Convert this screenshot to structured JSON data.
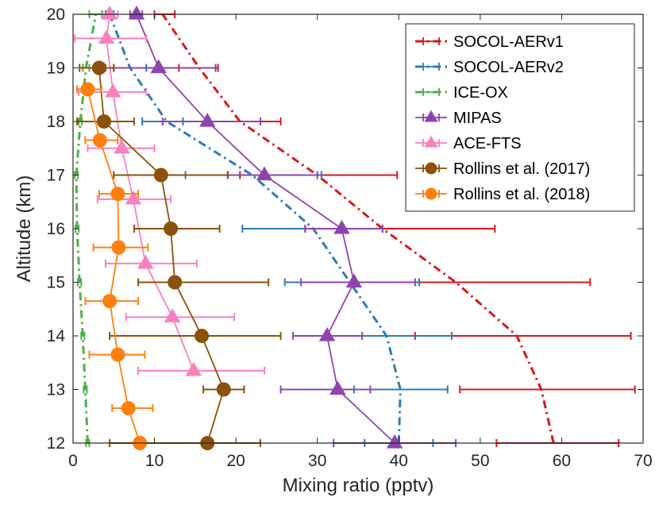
{
  "chart_data": {
    "type": "line",
    "xlabel": "Mixing ratio (pptv)",
    "ylabel": "Altitude (km)",
    "xlim": [
      0,
      70
    ],
    "ylim": [
      12,
      20
    ],
    "xticks": [
      0,
      10,
      20,
      30,
      40,
      50,
      60,
      70
    ],
    "yticks": [
      12,
      13,
      14,
      15,
      16,
      17,
      18,
      19,
      20
    ],
    "grid": false,
    "legend_position": "top-right",
    "series": [
      {
        "name": "SOCOL-AERv1",
        "color": "#d7191c",
        "style": "dashdot",
        "marker": "none",
        "points": [
          [
            59.0,
            12
          ],
          [
            57.5,
            13
          ],
          [
            54.5,
            14
          ],
          [
            47.0,
            15
          ],
          [
            38.0,
            16
          ],
          [
            30.0,
            17
          ],
          [
            20.5,
            18
          ],
          [
            15.5,
            19
          ],
          [
            11.0,
            20
          ]
        ],
        "errorbars": [
          {
            "y": 12,
            "lo": 52.0,
            "hi": 67.0
          },
          {
            "y": 13,
            "lo": 47.5,
            "hi": 69.0
          },
          {
            "y": 14,
            "lo": 42.0,
            "hi": 68.5
          },
          {
            "y": 15,
            "lo": 42.5,
            "hi": 63.5
          },
          {
            "y": 16,
            "lo": 28.5,
            "hi": 51.8
          },
          {
            "y": 17,
            "lo": 20.5,
            "hi": 39.8
          },
          {
            "y": 18,
            "lo": 13.5,
            "hi": 25.5
          },
          {
            "y": 19,
            "lo": 13.0,
            "hi": 17.8
          },
          {
            "y": 20,
            "lo": 10.0,
            "hi": 12.5
          }
        ]
      },
      {
        "name": "SOCOL-AERv2",
        "color": "#2c7bb6",
        "style": "dashdot",
        "marker": "none",
        "points": [
          [
            40.0,
            12
          ],
          [
            40.2,
            13
          ],
          [
            38.5,
            14
          ],
          [
            34.0,
            15
          ],
          [
            29.5,
            16
          ],
          [
            22.0,
            17
          ],
          [
            11.5,
            18
          ],
          [
            7.0,
            19
          ],
          [
            4.5,
            20
          ]
        ],
        "errorbars": [
          {
            "y": 12,
            "lo": 35.8,
            "hi": 44.2
          },
          {
            "y": 13,
            "lo": 34.5,
            "hi": 46.0
          },
          {
            "y": 14,
            "lo": 31.0,
            "hi": 46.5
          },
          {
            "y": 15,
            "lo": 26.0,
            "hi": 42.5
          },
          {
            "y": 16,
            "lo": 20.8,
            "hi": 38.0
          },
          {
            "y": 17,
            "lo": 13.8,
            "hi": 30.5
          },
          {
            "y": 18,
            "lo": 8.5,
            "hi": 13.5
          },
          {
            "y": 19,
            "lo": 5.0,
            "hi": 9.0
          },
          {
            "y": 20,
            "lo": 4.0,
            "hi": 5.0
          }
        ]
      },
      {
        "name": "ICE-OX",
        "color": "#4daf4a",
        "style": "dashdot",
        "marker": "none",
        "points": [
          [
            1.8,
            12
          ],
          [
            1.5,
            13
          ],
          [
            1.2,
            14
          ],
          [
            0.8,
            15
          ],
          [
            0.5,
            16
          ],
          [
            0.4,
            17
          ],
          [
            0.9,
            18
          ],
          [
            1.6,
            19
          ],
          [
            2.8,
            20
          ]
        ],
        "errorbars": [
          {
            "y": 12,
            "lo": 1.6,
            "hi": 2.0
          },
          {
            "y": 13,
            "lo": 1.3,
            "hi": 1.7
          },
          {
            "y": 14,
            "lo": 1.0,
            "hi": 1.4
          },
          {
            "y": 15,
            "lo": 0.6,
            "hi": 1.0
          },
          {
            "y": 16,
            "lo": 0.3,
            "hi": 0.7
          },
          {
            "y": 17,
            "lo": 0.2,
            "hi": 0.6
          },
          {
            "y": 18,
            "lo": 0.7,
            "hi": 1.1
          },
          {
            "y": 19,
            "lo": 1.2,
            "hi": 2.0
          },
          {
            "y": 20,
            "lo": 2.0,
            "hi": 3.6
          }
        ]
      },
      {
        "name": "MIPAS",
        "color": "#8e44ad",
        "style": "solid",
        "marker": "triangle",
        "points": [
          [
            39.5,
            12
          ],
          [
            32.5,
            13
          ],
          [
            31.2,
            14
          ],
          [
            34.5,
            15
          ],
          [
            33.0,
            16
          ],
          [
            23.5,
            17
          ],
          [
            16.5,
            18
          ],
          [
            10.5,
            19
          ],
          [
            7.8,
            20
          ]
        ],
        "errorbars": [
          {
            "y": 12,
            "lo": 32.0,
            "hi": 47.0
          },
          {
            "y": 13,
            "lo": 25.5,
            "hi": 36.5
          },
          {
            "y": 14,
            "lo": 27.0,
            "hi": 35.5
          },
          {
            "y": 15,
            "lo": 28.0,
            "hi": 42.0
          },
          {
            "y": 16,
            "lo": 28.5,
            "hi": 38.0
          },
          {
            "y": 17,
            "lo": 19.0,
            "hi": 30.0
          },
          {
            "y": 18,
            "lo": 11.0,
            "hi": 23.0
          },
          {
            "y": 19,
            "lo": 4.0,
            "hi": 17.5
          },
          {
            "y": 20,
            "lo": 7.0,
            "hi": 8.5
          }
        ]
      },
      {
        "name": "ACE-FTS",
        "color": "#f781bf",
        "style": "solid",
        "marker": "triangle",
        "points": [
          [
            14.8,
            13.35
          ],
          [
            12.2,
            14.35
          ],
          [
            8.9,
            15.35
          ],
          [
            7.4,
            16.55
          ],
          [
            6.0,
            17.5
          ],
          [
            4.9,
            18.55
          ],
          [
            4.1,
            19.55
          ],
          [
            4.5,
            20
          ]
        ],
        "errorbars": [
          {
            "y": 13.35,
            "lo": 8.0,
            "hi": 23.5
          },
          {
            "y": 14.35,
            "lo": 6.5,
            "hi": 19.8
          },
          {
            "y": 15.35,
            "lo": 4.0,
            "hi": 15.2
          },
          {
            "y": 16.55,
            "lo": 3.0,
            "hi": 12.0
          },
          {
            "y": 17.5,
            "lo": 1.8,
            "hi": 10.0
          },
          {
            "y": 18.55,
            "lo": 0.7,
            "hi": 9.0
          },
          {
            "y": 19.55,
            "lo": 0.2,
            "hi": 9.0
          },
          {
            "y": 20,
            "lo": 3.5,
            "hi": 5.5
          }
        ]
      },
      {
        "name": "Rollins et al. (2017)",
        "color": "#8c510a",
        "style": "solid",
        "marker": "circle",
        "points": [
          [
            16.5,
            12
          ],
          [
            18.5,
            13
          ],
          [
            15.8,
            14
          ],
          [
            12.5,
            15
          ],
          [
            12.0,
            16
          ],
          [
            10.8,
            17
          ],
          [
            3.8,
            18
          ],
          [
            3.2,
            19
          ]
        ],
        "errorbars": [
          {
            "y": 12,
            "lo": 4.5,
            "hi": 23.0
          },
          {
            "y": 13,
            "lo": 16.0,
            "hi": 21.0
          },
          {
            "y": 14,
            "lo": 4.5,
            "hi": 25.5
          },
          {
            "y": 15,
            "lo": 8.0,
            "hi": 24.0
          },
          {
            "y": 16,
            "lo": 7.5,
            "hi": 18.0
          },
          {
            "y": 17,
            "lo": 5.0,
            "hi": 19.0
          },
          {
            "y": 18,
            "lo": 0.5,
            "hi": 7.5
          },
          {
            "y": 19,
            "lo": 0.8,
            "hi": 5.0
          }
        ]
      },
      {
        "name": "Rollins et al. (2018)",
        "color": "#ff7f0e",
        "style": "solid",
        "marker": "circle",
        "points": [
          [
            8.2,
            12
          ],
          [
            6.8,
            12.65
          ],
          [
            5.5,
            13.65
          ],
          [
            4.5,
            14.65
          ],
          [
            5.6,
            15.65
          ],
          [
            5.5,
            16.65
          ],
          [
            3.3,
            17.65
          ],
          [
            1.8,
            18.6
          ]
        ],
        "errorbars": [
          {
            "y": 12.65,
            "lo": 4.8,
            "hi": 9.8
          },
          {
            "y": 13.65,
            "lo": 2.0,
            "hi": 8.8
          },
          {
            "y": 14.65,
            "lo": 1.5,
            "hi": 8.0
          },
          {
            "y": 15.65,
            "lo": 2.5,
            "hi": 9.2
          },
          {
            "y": 16.65,
            "lo": 3.2,
            "hi": 8.0
          },
          {
            "y": 17.65,
            "lo": 1.5,
            "hi": 5.5
          },
          {
            "y": 18.6,
            "lo": 0.5,
            "hi": 3.5
          }
        ]
      }
    ]
  }
}
